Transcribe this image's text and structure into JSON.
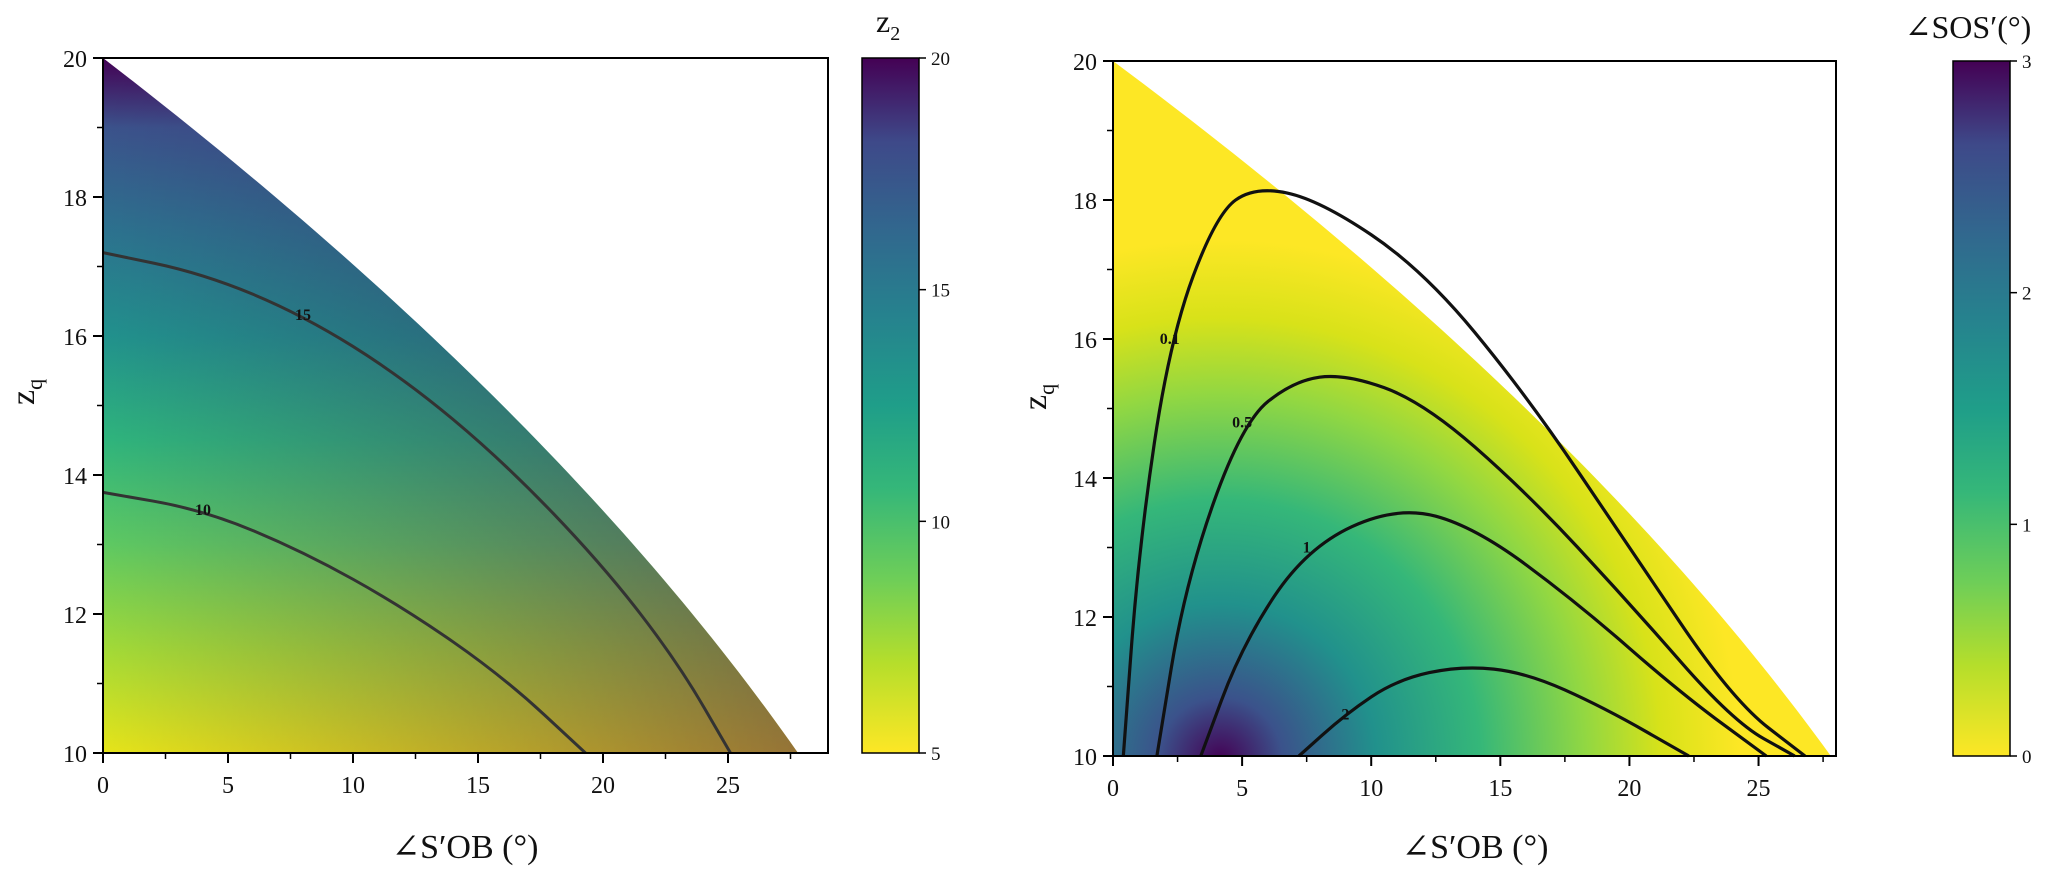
{
  "chart_data": [
    {
      "type": "heatmap",
      "xlabel": "∠S′OB (°)",
      "ylabel": "z",
      "ylabel_sub": "q",
      "xlim": [
        0,
        29
      ],
      "ylim": [
        10,
        20
      ],
      "xticks": [
        0,
        5,
        10,
        15,
        20,
        25
      ],
      "yticks": [
        10,
        12,
        14,
        16,
        18,
        20
      ],
      "boundary": {
        "x_at_ymin": 27.8,
        "x_at_ymax": 0
      },
      "colorbar": {
        "title": "z",
        "title_sub": "2",
        "range": [
          5,
          20
        ],
        "ticks": [
          5,
          10,
          15,
          20
        ],
        "colormap": "viridis_r"
      },
      "contours": [
        {
          "label": "15",
          "points": [
            [
              0,
              17.2
            ],
            [
              4,
              16.9
            ],
            [
              8,
              16.3
            ],
            [
              12,
              15.4
            ],
            [
              16,
              14.2
            ],
            [
              20,
              12.7
            ],
            [
              23,
              11.3
            ],
            [
              25.1,
              10
            ]
          ]
        },
        {
          "label": "10",
          "points": [
            [
              0,
              13.75
            ],
            [
              4,
              13.5
            ],
            [
              8,
              12.9
            ],
            [
              12,
              12.1
            ],
            [
              16,
              11.1
            ],
            [
              19.3,
              10
            ]
          ]
        }
      ]
    },
    {
      "type": "heatmap",
      "xlabel": "∠S′OB (°)",
      "ylabel": "z",
      "ylabel_sub": "q",
      "xlim": [
        0,
        28
      ],
      "ylim": [
        10,
        20
      ],
      "xticks": [
        0,
        5,
        10,
        15,
        20,
        25
      ],
      "yticks": [
        10,
        12,
        14,
        16,
        18,
        20
      ],
      "boundary": {
        "x_at_ymin": 27.8,
        "x_at_ymax": 0
      },
      "colorbar": {
        "title": "∠SOS′(°)",
        "range": [
          0,
          3
        ],
        "ticks": [
          0,
          1,
          2,
          3
        ],
        "colormap": "viridis_r"
      },
      "contours": [
        {
          "label": "0.1",
          "points": [
            [
              0.4,
              10
            ],
            [
              1.0,
              13
            ],
            [
              2.2,
              16
            ],
            [
              4,
              17.8
            ],
            [
              5.5,
              18.2
            ],
            [
              8,
              18.0
            ],
            [
              12,
              17.0
            ],
            [
              16,
              15.2
            ],
            [
              20,
              13.0
            ],
            [
              24,
              10.8
            ],
            [
              26.8,
              10
            ]
          ]
        },
        {
          "label": "0.5",
          "points": [
            [
              1.7,
              10
            ],
            [
              2.8,
              12.5
            ],
            [
              5,
              14.8
            ],
            [
              7,
              15.4
            ],
            [
              9,
              15.5
            ],
            [
              12,
              15.1
            ],
            [
              16,
              13.8
            ],
            [
              20,
              12.2
            ],
            [
              24,
              10.5
            ],
            [
              26.4,
              10
            ]
          ]
        },
        {
          "label": "1",
          "points": [
            [
              3.4,
              10
            ],
            [
              5,
              11.6
            ],
            [
              7.5,
              13.0
            ],
            [
              11,
              13.6
            ],
            [
              14,
              13.3
            ],
            [
              18,
              12.2
            ],
            [
              22,
              10.9
            ],
            [
              25.3,
              10
            ]
          ]
        },
        {
          "label": "2",
          "points": [
            [
              7.2,
              10
            ],
            [
              9,
              10.6
            ],
            [
              11,
              11.1
            ],
            [
              13.5,
              11.3
            ],
            [
              16,
              11.2
            ],
            [
              19,
              10.7
            ],
            [
              22.3,
              10
            ]
          ]
        }
      ]
    }
  ]
}
